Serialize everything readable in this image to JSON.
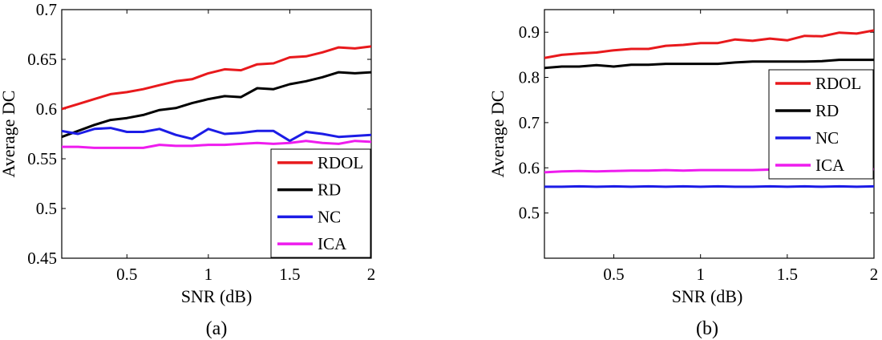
{
  "chart_data": [
    {
      "type": "line",
      "caption": "(a)",
      "xlabel": "SNR (dB)",
      "ylabel": "Average DC",
      "xlim": [
        0.1,
        2.0
      ],
      "ylim": [
        0.45,
        0.7
      ],
      "xticks": [
        0.5,
        1,
        1.5,
        2
      ],
      "xtick_labels": [
        "0.5",
        "1",
        "1.5",
        "2"
      ],
      "yticks": [
        0.45,
        0.5,
        0.55,
        0.6,
        0.65,
        0.7
      ],
      "ytick_labels": [
        "0.45",
        "0.5",
        "0.55",
        "0.6",
        "0.65",
        "0.7"
      ],
      "grid": false,
      "legend_position": "bottom-right",
      "x": [
        0.1,
        0.2,
        0.3,
        0.4,
        0.5,
        0.6,
        0.7,
        0.8,
        0.9,
        1.0,
        1.1,
        1.2,
        1.3,
        1.4,
        1.5,
        1.6,
        1.7,
        1.8,
        1.9,
        2.0
      ],
      "series": [
        {
          "name": "RDOL",
          "color": "#e8191c",
          "values": [
            0.6,
            0.605,
            0.61,
            0.615,
            0.617,
            0.62,
            0.624,
            0.628,
            0.63,
            0.636,
            0.64,
            0.639,
            0.645,
            0.646,
            0.652,
            0.653,
            0.657,
            0.662,
            0.661,
            0.663
          ]
        },
        {
          "name": "RD",
          "color": "#000000",
          "values": [
            0.572,
            0.578,
            0.584,
            0.589,
            0.591,
            0.594,
            0.599,
            0.601,
            0.606,
            0.61,
            0.613,
            0.612,
            0.621,
            0.62,
            0.625,
            0.628,
            0.632,
            0.637,
            0.636,
            0.637
          ]
        },
        {
          "name": "NC",
          "color": "#1c1ce6",
          "values": [
            0.578,
            0.575,
            0.58,
            0.581,
            0.577,
            0.577,
            0.58,
            0.574,
            0.57,
            0.58,
            0.575,
            0.576,
            0.578,
            0.578,
            0.568,
            0.577,
            0.575,
            0.572,
            0.573,
            0.574
          ]
        },
        {
          "name": "ICA",
          "color": "#ee1cee",
          "values": [
            0.562,
            0.562,
            0.561,
            0.561,
            0.561,
            0.561,
            0.564,
            0.563,
            0.563,
            0.564,
            0.564,
            0.565,
            0.566,
            0.565,
            0.566,
            0.568,
            0.566,
            0.565,
            0.568,
            0.567
          ]
        }
      ]
    },
    {
      "type": "line",
      "caption": "(b)",
      "xlabel": "SNR (dB)",
      "ylabel": "Average DC",
      "xlim": [
        0.1,
        2.0
      ],
      "ylim": [
        0.4,
        0.95
      ],
      "xticks": [
        0.5,
        1,
        1.5,
        2
      ],
      "xtick_labels": [
        "0.5",
        "1",
        "1.5",
        "2"
      ],
      "yticks": [
        0.5,
        0.6,
        0.7,
        0.8,
        0.9
      ],
      "ytick_labels": [
        "0.5",
        "0.6",
        "0.7",
        "0.8",
        "0.9"
      ],
      "grid": false,
      "legend_position": "top-right",
      "x": [
        0.1,
        0.2,
        0.3,
        0.4,
        0.5,
        0.6,
        0.7,
        0.8,
        0.9,
        1.0,
        1.1,
        1.2,
        1.3,
        1.4,
        1.5,
        1.6,
        1.7,
        1.8,
        1.9,
        2.0
      ],
      "series": [
        {
          "name": "RDOL",
          "color": "#e8191c",
          "values": [
            0.843,
            0.85,
            0.853,
            0.855,
            0.86,
            0.863,
            0.863,
            0.87,
            0.872,
            0.876,
            0.876,
            0.884,
            0.881,
            0.886,
            0.882,
            0.892,
            0.891,
            0.899,
            0.897,
            0.904
          ]
        },
        {
          "name": "RD",
          "color": "#000000",
          "values": [
            0.821,
            0.824,
            0.824,
            0.827,
            0.824,
            0.828,
            0.828,
            0.83,
            0.83,
            0.83,
            0.83,
            0.833,
            0.835,
            0.835,
            0.835,
            0.835,
            0.836,
            0.839,
            0.839,
            0.839
          ]
        },
        {
          "name": "NC",
          "color": "#1c1ce6",
          "values": [
            0.558,
            0.558,
            0.559,
            0.558,
            0.559,
            0.558,
            0.559,
            0.558,
            0.559,
            0.558,
            0.559,
            0.558,
            0.558,
            0.559,
            0.558,
            0.559,
            0.558,
            0.559,
            0.558,
            0.559
          ]
        },
        {
          "name": "ICA",
          "color": "#ee1cee",
          "values": [
            0.59,
            0.592,
            0.593,
            0.592,
            0.593,
            0.594,
            0.594,
            0.595,
            0.594,
            0.595,
            0.595,
            0.595,
            0.595,
            0.596,
            0.596,
            0.596,
            0.596,
            0.596,
            0.596,
            0.597
          ]
        }
      ]
    }
  ]
}
